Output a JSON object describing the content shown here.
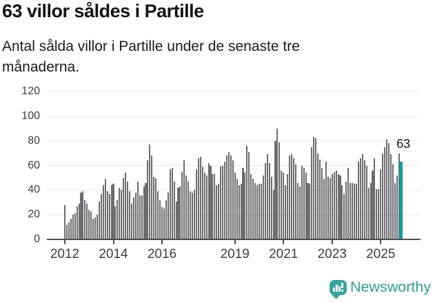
{
  "header": {
    "title": "63 villor såldes i Partille",
    "subtitle": "Antal sålda villor i Partille under de senaste tre månaderna."
  },
  "chart_data": {
    "type": "bar",
    "title": "63 villor såldes i Partille",
    "subtitle": "Antal sålda villor i Partille under de senaste tre månaderna.",
    "xlabel": "",
    "ylabel": "",
    "ylim": [
      0,
      120
    ],
    "yticks": [
      0,
      20,
      40,
      60,
      80,
      100,
      120
    ],
    "grid": true,
    "legend": "none",
    "x_unit": "month",
    "xticks": [
      {
        "label": "2012",
        "index": 0
      },
      {
        "label": "2014",
        "index": 24
      },
      {
        "label": "2016",
        "index": 48
      },
      {
        "label": "2019",
        "index": 84
      },
      {
        "label": "2021",
        "index": 108
      },
      {
        "label": "2023",
        "index": 132
      },
      {
        "label": "2025",
        "index": 156
      }
    ],
    "bar_color": "#6c6c71",
    "values": [
      28,
      12,
      14,
      17,
      20,
      21,
      27,
      29,
      38,
      39,
      32,
      29,
      24,
      23,
      17,
      18,
      20,
      31,
      37,
      44,
      49,
      39,
      37,
      44,
      45,
      27,
      32,
      42,
      40,
      50,
      54,
      47,
      39,
      29,
      34,
      38,
      47,
      36,
      36,
      43,
      46,
      64,
      77,
      68,
      51,
      50,
      39,
      32,
      26,
      25,
      32,
      38,
      57,
      58,
      47,
      31,
      42,
      43,
      55,
      64,
      52,
      47,
      39,
      38,
      40,
      57,
      66,
      67,
      59,
      54,
      52,
      62,
      60,
      53,
      53,
      44,
      45,
      59,
      60,
      63,
      68,
      71,
      68,
      64,
      54,
      49,
      44,
      45,
      58,
      54,
      76,
      71,
      53,
      49,
      46,
      44,
      45,
      45,
      52,
      62,
      69,
      62,
      51,
      40,
      80,
      90,
      79,
      56,
      54,
      44,
      53,
      68,
      69,
      66,
      61,
      46,
      43,
      60,
      58,
      54,
      46,
      45,
      75,
      83,
      82,
      70,
      65,
      58,
      49,
      63,
      51,
      50,
      53,
      55,
      56,
      53,
      52,
      44,
      37,
      47,
      58,
      46,
      46,
      45,
      45,
      63,
      66,
      69,
      64,
      60,
      42,
      46,
      56,
      66,
      41,
      41,
      57,
      70,
      75,
      81,
      78,
      69,
      61,
      46,
      52,
      70,
      63
    ],
    "highlight": {
      "index": 166,
      "value": 63,
      "label": "63",
      "color": "#189a9b"
    }
  },
  "footer": {
    "brand": "Newsworthy",
    "brand_color": "#2e9c96",
    "icon": "bar-chart-pin-icon",
    "icon_color": "#3ba49d"
  }
}
